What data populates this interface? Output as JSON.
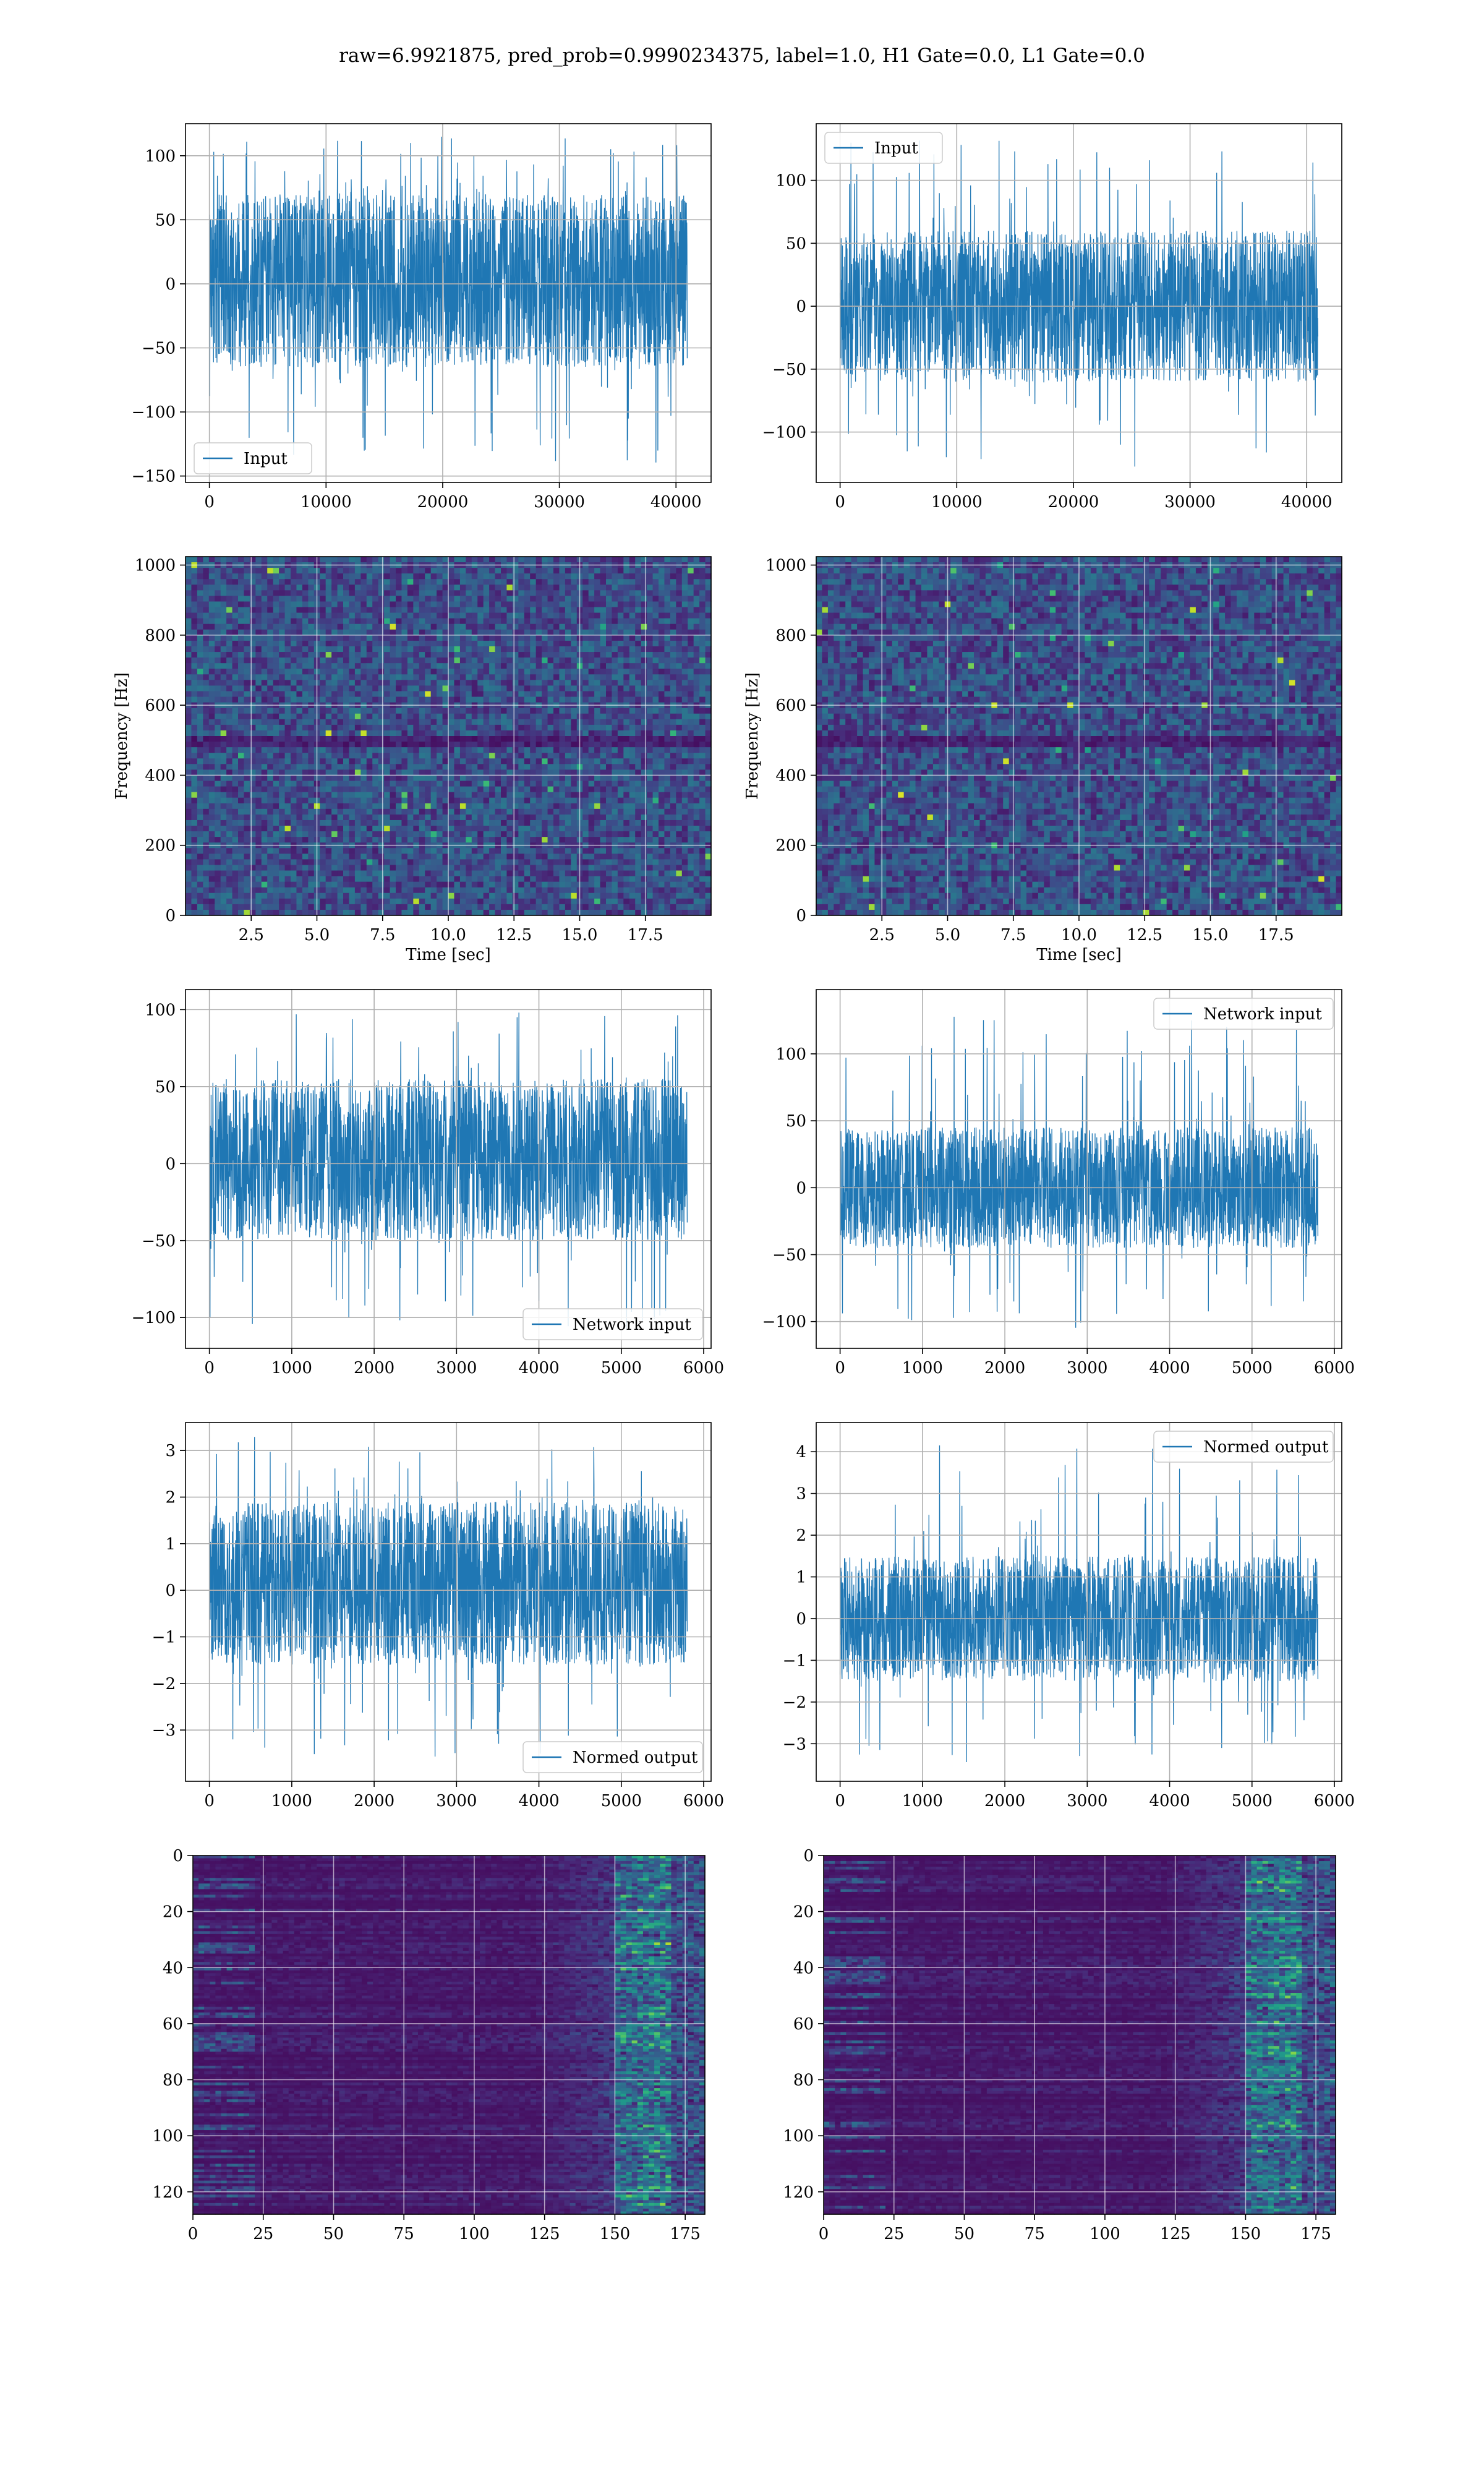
{
  "figure": {
    "suptitle": "raw=6.9921875, pred_prob=0.9990234375, label=1.0, H1 Gate=0.0, L1 Gate=0.0",
    "signal_color": "#1f77b4"
  },
  "chart_data": [
    {
      "id": "input-h1",
      "type": "line",
      "title": "",
      "xlabel": "",
      "ylabel": "",
      "xlim": [
        -2048,
        43008
      ],
      "ylim": [
        -155,
        125
      ],
      "xticks": [
        0,
        10000,
        20000,
        30000,
        40000
      ],
      "xtick_labels": [
        "0",
        "10000",
        "20000",
        "30000",
        "40000"
      ],
      "yticks": [
        -150,
        -100,
        -50,
        0,
        50,
        100
      ],
      "ytick_labels": [
        "−150",
        "−100",
        "−50",
        "0",
        "50",
        "100"
      ],
      "grid": true,
      "legend_loc": "lower-left",
      "series": [
        {
          "name": "Input",
          "x_range": [
            0,
            40960
          ],
          "band": [
            -65,
            70
          ],
          "peak_range": [
            -140,
            117
          ]
        }
      ]
    },
    {
      "id": "input-l1",
      "type": "line",
      "title": "",
      "xlabel": "",
      "ylabel": "",
      "xlim": [
        -2048,
        43008
      ],
      "ylim": [
        -140,
        145
      ],
      "xticks": [
        0,
        10000,
        20000,
        30000,
        40000
      ],
      "xtick_labels": [
        "0",
        "10000",
        "20000",
        "30000",
        "40000"
      ],
      "yticks": [
        -100,
        -50,
        0,
        50,
        100
      ],
      "ytick_labels": [
        "−100",
        "−50",
        "0",
        "50",
        "100"
      ],
      "grid": true,
      "legend_loc": "upper-left",
      "series": [
        {
          "name": "Input",
          "x_range": [
            0,
            40960
          ],
          "band": [
            -60,
            60
          ],
          "peak_range": [
            -128,
            133
          ]
        }
      ]
    },
    {
      "id": "spectrogram-h1",
      "type": "heatmap",
      "title": "",
      "xlabel": "Time [sec]",
      "ylabel": "Frequency [Hz]",
      "xlim": [
        0,
        20
      ],
      "ylim": [
        0,
        1024
      ],
      "xticks": [
        2.5,
        5.0,
        7.5,
        10.0,
        12.5,
        15.0,
        17.5
      ],
      "xtick_labels": [
        "2.5",
        "5.0",
        "7.5",
        "10.0",
        "12.5",
        "15.0",
        "17.5"
      ],
      "yticks": [
        0,
        200,
        400,
        600,
        800,
        1000
      ],
      "ytick_labels": [
        "0",
        "200",
        "400",
        "600",
        "800",
        "1000"
      ],
      "grid": true,
      "colormap": "viridis"
    },
    {
      "id": "spectrogram-l1",
      "type": "heatmap",
      "title": "",
      "xlabel": "Time [sec]",
      "ylabel": "Frequency [Hz]",
      "xlim": [
        0,
        20
      ],
      "ylim": [
        0,
        1024
      ],
      "xticks": [
        2.5,
        5.0,
        7.5,
        10.0,
        12.5,
        15.0,
        17.5
      ],
      "xtick_labels": [
        "2.5",
        "5.0",
        "7.5",
        "10.0",
        "12.5",
        "15.0",
        "17.5"
      ],
      "yticks": [
        0,
        200,
        400,
        600,
        800,
        1000
      ],
      "ytick_labels": [
        "0",
        "200",
        "400",
        "600",
        "800",
        "1000"
      ],
      "grid": true,
      "colormap": "viridis"
    },
    {
      "id": "network-input-h1",
      "type": "line",
      "title": "",
      "xlabel": "",
      "ylabel": "",
      "xlim": [
        -290,
        6090
      ],
      "ylim": [
        -120,
        113
      ],
      "xticks": [
        0,
        1000,
        2000,
        3000,
        4000,
        5000,
        6000
      ],
      "xtick_labels": [
        "0",
        "1000",
        "2000",
        "3000",
        "4000",
        "5000",
        "6000"
      ],
      "yticks": [
        -100,
        -50,
        0,
        50,
        100
      ],
      "ytick_labels": [
        "−100",
        "−50",
        "0",
        "50",
        "100"
      ],
      "grid": true,
      "legend_loc": "lower-right",
      "series": [
        {
          "name": "Network input",
          "x_range": [
            0,
            5800
          ],
          "band": [
            -50,
            55
          ],
          "peak_range": [
            -110,
            100
          ]
        }
      ]
    },
    {
      "id": "network-input-l1",
      "type": "line",
      "title": "",
      "xlabel": "",
      "ylabel": "",
      "xlim": [
        -290,
        6090
      ],
      "ylim": [
        -120,
        148
      ],
      "xticks": [
        0,
        1000,
        2000,
        3000,
        4000,
        5000,
        6000
      ],
      "xtick_labels": [
        "0",
        "1000",
        "2000",
        "3000",
        "4000",
        "5000",
        "6000"
      ],
      "yticks": [
        -100,
        -50,
        0,
        50,
        100
      ],
      "ytick_labels": [
        "−100",
        "−50",
        "0",
        "50",
        "100"
      ],
      "grid": true,
      "legend_loc": "upper-right",
      "series": [
        {
          "name": "Network input",
          "x_range": [
            0,
            5800
          ],
          "band": [
            -45,
            45
          ],
          "peak_range": [
            -108,
            131
          ]
        }
      ]
    },
    {
      "id": "normed-output-h1",
      "type": "line",
      "title": "",
      "xlabel": "",
      "ylabel": "",
      "xlim": [
        -290,
        6090
      ],
      "ylim": [
        -4.1,
        3.6
      ],
      "xticks": [
        0,
        1000,
        2000,
        3000,
        4000,
        5000,
        6000
      ],
      "xtick_labels": [
        "0",
        "1000",
        "2000",
        "3000",
        "4000",
        "5000",
        "6000"
      ],
      "yticks": [
        -3,
        -2,
        -1,
        0,
        1,
        2,
        3
      ],
      "ytick_labels": [
        "−3",
        "−2",
        "−1",
        "0",
        "1",
        "2",
        "3"
      ],
      "grid": true,
      "legend_loc": "lower-right",
      "series": [
        {
          "name": "Normed output",
          "x_range": [
            0,
            5800
          ],
          "band": [
            -1.6,
            1.9
          ],
          "peak_range": [
            -3.6,
            3.3
          ]
        }
      ]
    },
    {
      "id": "normed-output-l1",
      "type": "line",
      "title": "",
      "xlabel": "",
      "ylabel": "",
      "xlim": [
        -290,
        6090
      ],
      "ylim": [
        -3.9,
        4.7
      ],
      "xticks": [
        0,
        1000,
        2000,
        3000,
        4000,
        5000,
        6000
      ],
      "xtick_labels": [
        "0",
        "1000",
        "2000",
        "3000",
        "4000",
        "5000",
        "6000"
      ],
      "yticks": [
        -3,
        -2,
        -1,
        0,
        1,
        2,
        3,
        4
      ],
      "ytick_labels": [
        "−3",
        "−2",
        "−1",
        "0",
        "1",
        "2",
        "3",
        "4"
      ],
      "grid": true,
      "legend_loc": "upper-right",
      "series": [
        {
          "name": "Normed output",
          "x_range": [
            0,
            5800
          ],
          "band": [
            -1.5,
            1.5
          ],
          "peak_range": [
            -3.5,
            4.3
          ]
        }
      ]
    },
    {
      "id": "feature-map-h1",
      "type": "heatmap",
      "title": "",
      "xlabel": "",
      "ylabel": "",
      "xlim": [
        0,
        182
      ],
      "ylim": [
        128,
        0
      ],
      "xticks": [
        0,
        25,
        50,
        75,
        100,
        125,
        150,
        175
      ],
      "xtick_labels": [
        "0",
        "25",
        "50",
        "75",
        "100",
        "125",
        "150",
        "175"
      ],
      "yticks": [
        0,
        20,
        40,
        60,
        80,
        100,
        120
      ],
      "ytick_labels": [
        "0",
        "20",
        "40",
        "60",
        "80",
        "100",
        "120"
      ],
      "grid": true,
      "colormap": "viridis"
    },
    {
      "id": "feature-map-l1",
      "type": "heatmap",
      "title": "",
      "xlabel": "",
      "ylabel": "",
      "xlim": [
        0,
        182
      ],
      "ylim": [
        128,
        0
      ],
      "xticks": [
        0,
        25,
        50,
        75,
        100,
        125,
        150,
        175
      ],
      "xtick_labels": [
        "0",
        "25",
        "50",
        "75",
        "100",
        "125",
        "150",
        "175"
      ],
      "yticks": [
        0,
        20,
        40,
        60,
        80,
        100,
        120
      ],
      "ytick_labels": [
        "0",
        "20",
        "40",
        "60",
        "80",
        "100",
        "120"
      ],
      "grid": true,
      "colormap": "viridis"
    }
  ]
}
